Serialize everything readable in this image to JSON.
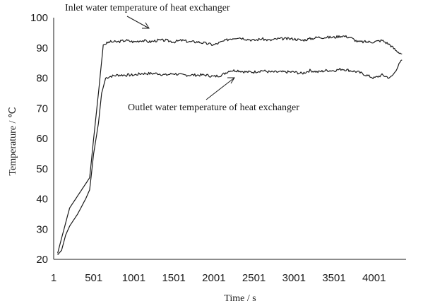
{
  "chart_data": {
    "type": "line",
    "xlabel": "Time / s",
    "ylabel": "Temperature / ℃",
    "xlim": [
      1,
      4400
    ],
    "ylim": [
      20,
      100
    ],
    "x_ticks": [
      1,
      501,
      1001,
      1501,
      2001,
      2501,
      3001,
      3501,
      4001
    ],
    "y_ticks": [
      20,
      30,
      40,
      50,
      60,
      70,
      80,
      90,
      100
    ],
    "grid": false,
    "legend": "none",
    "line_color": "#1a1a1a",
    "annotations": [
      {
        "text": "Inlet water temperature of heat exchanger",
        "series": "inlet"
      },
      {
        "text": "Outlet  water temperature of heat exchanger",
        "series": "outlet"
      }
    ],
    "series": [
      {
        "key": "inlet",
        "x": [
          50,
          100,
          150,
          200,
          300,
          400,
          450,
          500,
          560,
          620,
          700,
          800,
          900,
          1000,
          1100,
          1200,
          1300,
          1400,
          1500,
          1600,
          1700,
          1800,
          1900,
          2000,
          2100,
          2200,
          2300,
          2400,
          2500,
          2600,
          2700,
          2800,
          2900,
          3000,
          3100,
          3200,
          3300,
          3400,
          3500,
          3600,
          3700,
          3800,
          3900,
          4000,
          4100,
          4200,
          4280,
          4350
        ],
        "y": [
          22,
          27,
          32,
          37,
          41,
          45,
          47,
          60,
          75,
          91,
          92,
          92,
          92.5,
          92,
          92.5,
          92,
          92.5,
          92.5,
          92,
          92.5,
          92,
          92,
          91.5,
          91,
          92,
          93,
          93.5,
          93,
          92.5,
          93,
          92.5,
          93,
          93,
          93,
          92.5,
          93,
          93.5,
          93.5,
          93.5,
          94,
          93.5,
          92,
          92,
          92,
          92.5,
          91,
          89,
          88
        ]
      },
      {
        "key": "outlet",
        "x": [
          50,
          100,
          150,
          200,
          300,
          400,
          450,
          500,
          560,
          600,
          650,
          700,
          800,
          900,
          1000,
          1100,
          1200,
          1300,
          1400,
          1500,
          1600,
          1700,
          1800,
          1900,
          2000,
          2100,
          2200,
          2300,
          2400,
          2500,
          2600,
          2700,
          2800,
          2900,
          3000,
          3100,
          3200,
          3300,
          3400,
          3500,
          3600,
          3700,
          3800,
          3900,
          4000,
          4100,
          4200,
          4250,
          4300,
          4350
        ],
        "y": [
          21.5,
          23,
          28,
          31,
          35,
          40,
          43,
          55,
          65,
          75,
          80,
          80.5,
          81,
          81,
          81,
          81.5,
          81.5,
          81.5,
          81,
          81.5,
          81,
          81,
          81,
          81,
          80.5,
          81,
          82.5,
          82.5,
          82,
          82,
          82.5,
          82,
          82,
          82,
          82,
          81.5,
          82.5,
          82,
          82.5,
          82.5,
          83,
          82.5,
          82,
          81,
          80,
          81,
          80,
          81.5,
          84,
          86
        ]
      }
    ]
  }
}
